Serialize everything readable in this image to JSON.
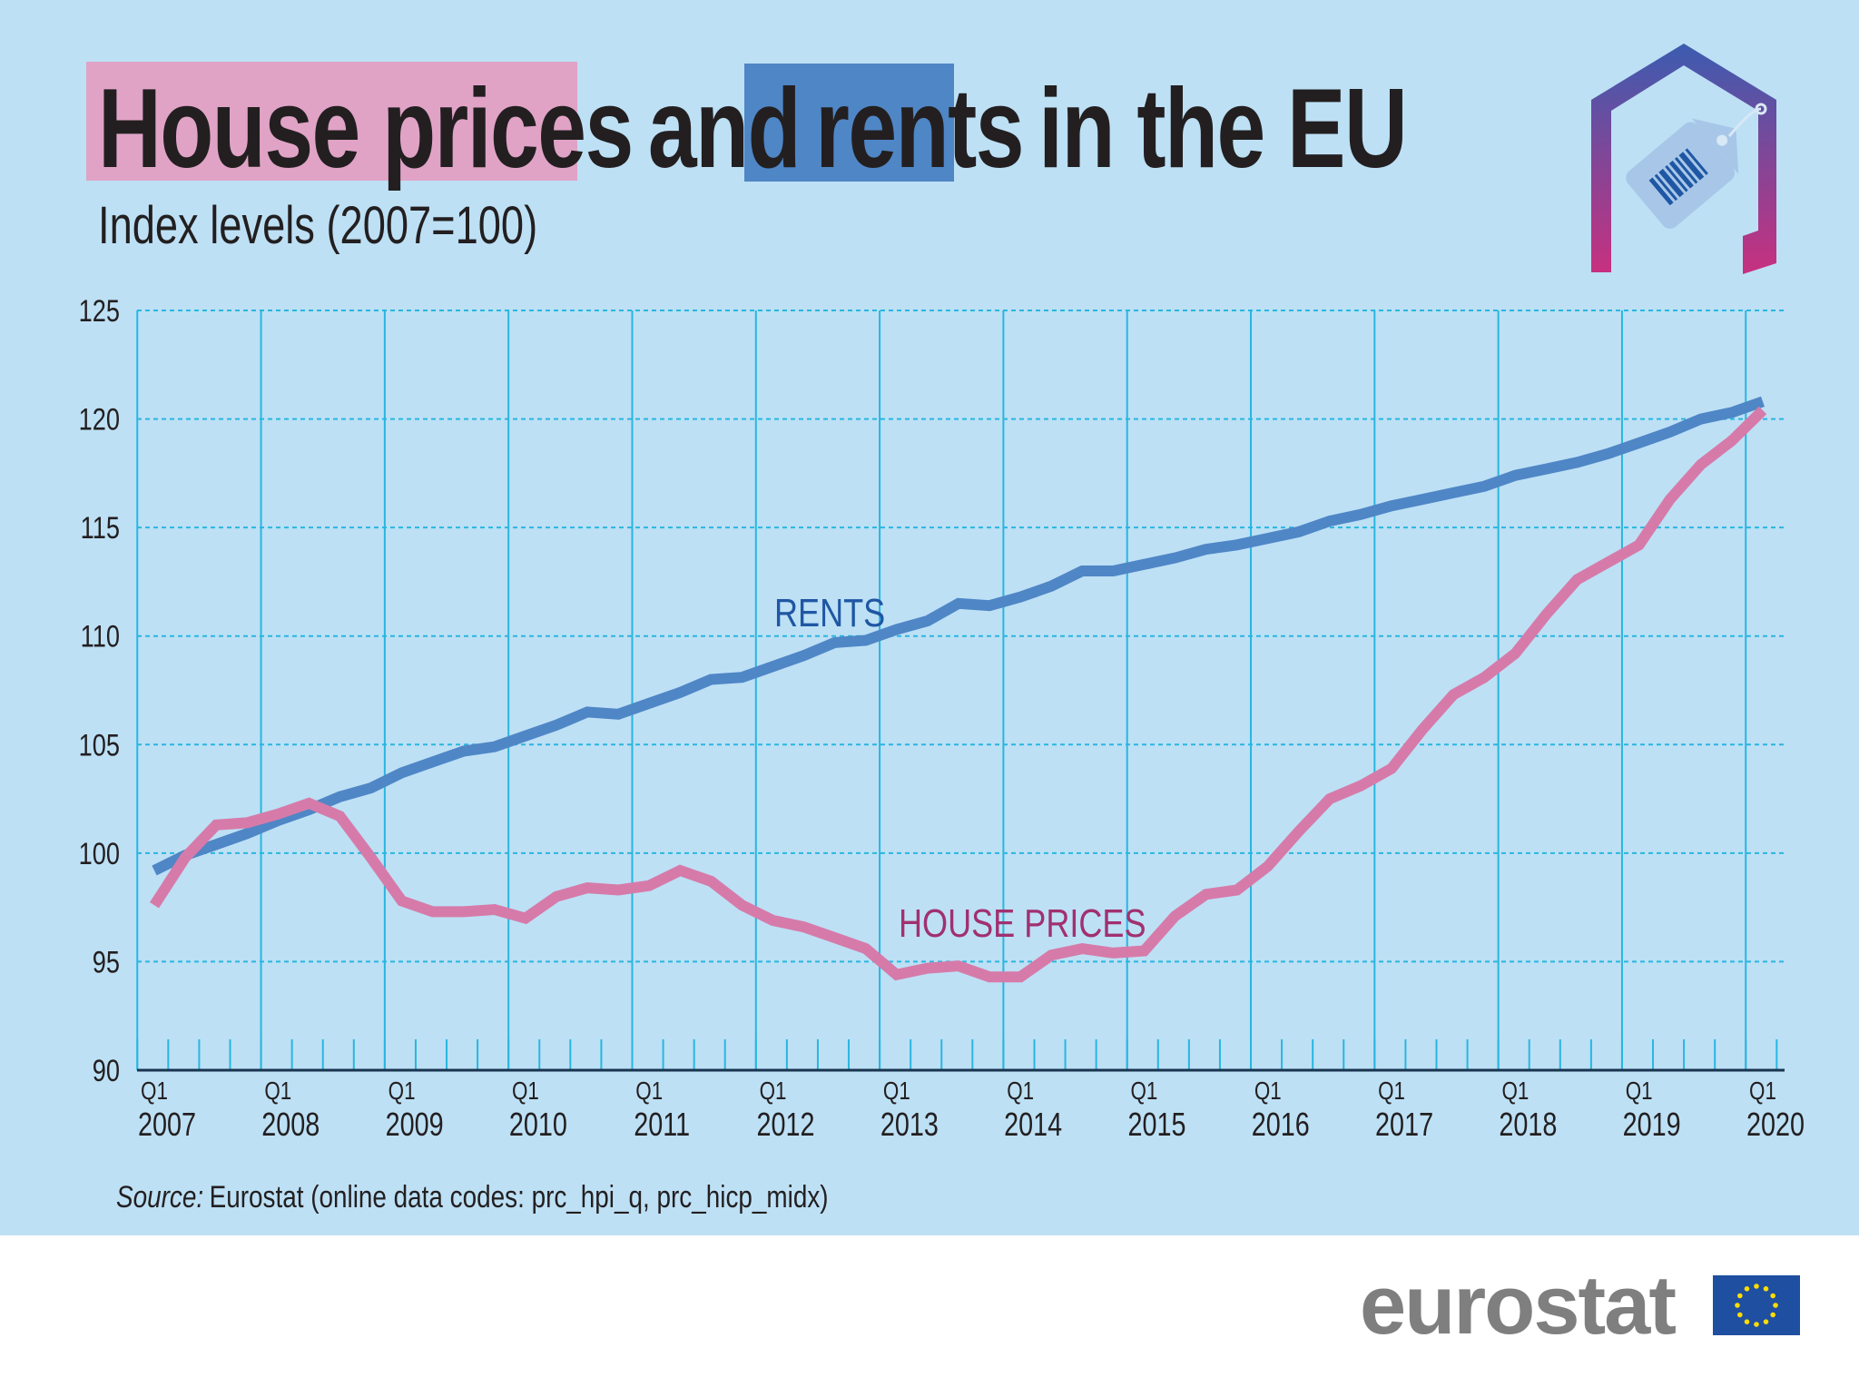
{
  "title": {
    "part1": "House prices",
    "part2": "and",
    "part3": "rents",
    "part4": "in the EU"
  },
  "subtitle": "Index levels (2007=100)",
  "source": {
    "label": "Source:",
    "text": "Eurostat (online data codes: prc_hpi_q, prc_hicp_midx)"
  },
  "logo": {
    "text": "eurostat"
  },
  "colors": {
    "background": "#bde0f5",
    "rents": "#4f86c6",
    "house_prices": "#d67ba9",
    "rents_label": "#1f57a4",
    "house_label": "#a1306f",
    "grid": "#29b6e0",
    "title_pink": "#e0a3c6",
    "title_blue": "#4f86c6"
  },
  "icons": [
    "house-price-tag-icon",
    "eu-flag-icon"
  ],
  "chart_data": {
    "type": "line",
    "title": "House prices and rents in the EU",
    "subtitle": "Index levels (2007=100)",
    "ylim": [
      90,
      125
    ],
    "yticks": [
      90,
      95,
      100,
      105,
      110,
      115,
      120,
      125
    ],
    "grid": true,
    "x_tick_labels": [
      {
        "q": "Q1",
        "year": "2007"
      },
      {
        "q": "Q1",
        "year": "2008"
      },
      {
        "q": "Q1",
        "year": "2009"
      },
      {
        "q": "Q1",
        "year": "2010"
      },
      {
        "q": "Q1",
        "year": "2011"
      },
      {
        "q": "Q1",
        "year": "2012"
      },
      {
        "q": "Q1",
        "year": "2013"
      },
      {
        "q": "Q1",
        "year": "2014"
      },
      {
        "q": "Q1",
        "year": "2015"
      },
      {
        "q": "Q1",
        "year": "2016"
      },
      {
        "q": "Q1",
        "year": "2017"
      },
      {
        "q": "Q1",
        "year": "2018"
      },
      {
        "q": "Q1",
        "year": "2019"
      },
      {
        "q": "Q1",
        "year": "2020"
      }
    ],
    "x_range": [
      "2007Q1",
      "2020Q1"
    ],
    "series": [
      {
        "name": "RENTS",
        "values": [
          99.2,
          99.9,
          100.4,
          100.9,
          101.5,
          102.0,
          102.6,
          103.0,
          103.7,
          104.2,
          104.7,
          104.9,
          105.4,
          105.9,
          106.5,
          106.4,
          106.9,
          107.4,
          108.0,
          108.1,
          108.6,
          109.1,
          109.7,
          109.8,
          110.3,
          110.7,
          111.5,
          111.4,
          111.8,
          112.3,
          113.0,
          113.0,
          113.3,
          113.6,
          114.0,
          114.2,
          114.5,
          114.8,
          115.3,
          115.6,
          116.0,
          116.3,
          116.6,
          116.9,
          117.4,
          117.7,
          118.0,
          118.4,
          118.9,
          119.4,
          120.0,
          120.3,
          120.8
        ]
      },
      {
        "name": "HOUSE PRICES",
        "values": [
          97.6,
          99.8,
          101.3,
          101.4,
          101.8,
          102.3,
          101.7,
          99.8,
          97.8,
          97.3,
          97.3,
          97.4,
          97.0,
          98.0,
          98.4,
          98.3,
          98.5,
          99.2,
          98.7,
          97.6,
          96.9,
          96.6,
          96.1,
          95.6,
          94.4,
          94.7,
          94.8,
          94.3,
          94.3,
          95.3,
          95.6,
          95.4,
          95.5,
          97.1,
          98.1,
          98.3,
          99.4,
          101.0,
          102.5,
          103.1,
          103.9,
          105.7,
          107.3,
          108.1,
          109.2,
          111.0,
          112.6,
          113.4,
          114.2,
          116.3,
          117.9,
          119.0,
          120.4
        ]
      }
    ]
  }
}
